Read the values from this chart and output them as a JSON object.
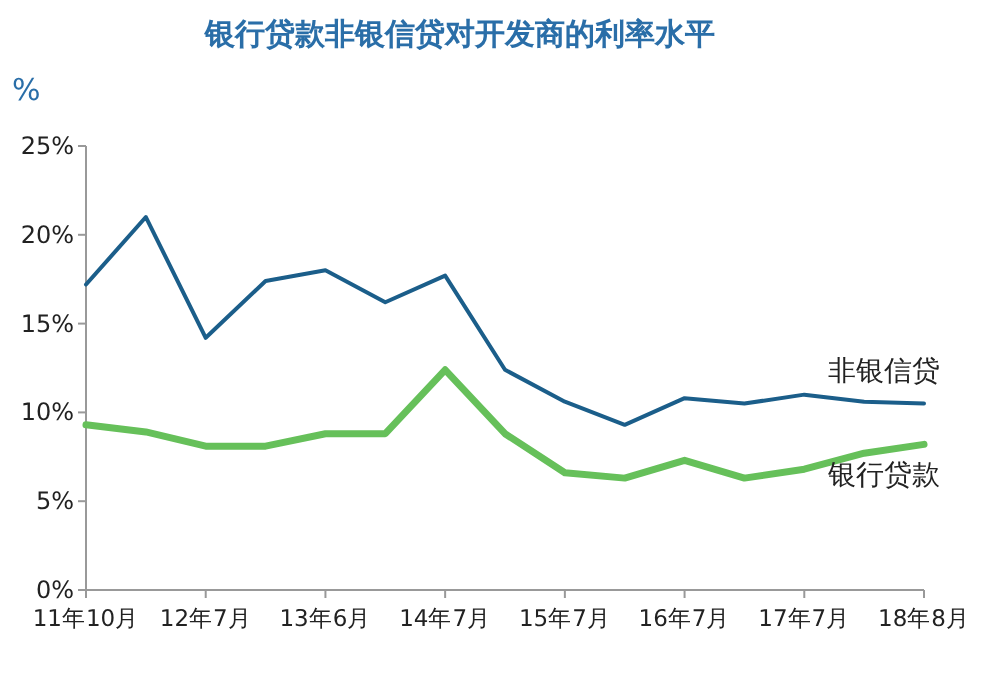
{
  "chart_data": {
    "type": "line",
    "title": "银行贷款非银信贷对开发商的利率水平",
    "ylabel": "%",
    "categories": [
      "11年10月",
      null,
      "12年7月",
      null,
      "13年6月",
      null,
      "14年7月",
      null,
      "15年7月",
      null,
      "16年7月",
      null,
      "17年7月",
      null,
      "18年8月"
    ],
    "series": [
      {
        "name": "非银信贷",
        "color": "#1b5e8a",
        "values": [
          17.2,
          21.0,
          14.2,
          17.4,
          18.0,
          16.2,
          17.7,
          12.4,
          10.6,
          9.3,
          10.8,
          10.5,
          11.0,
          10.6,
          10.5
        ]
      },
      {
        "name": "银行贷款",
        "color": "#66c05a",
        "values": [
          9.3,
          8.9,
          8.1,
          8.1,
          8.8,
          8.8,
          12.4,
          8.8,
          6.6,
          6.3,
          7.3,
          6.3,
          6.8,
          7.7,
          8.2
        ]
      }
    ],
    "ylim": [
      0,
      25
    ],
    "yticks": [
      {
        "value": 0,
        "label": "0%"
      },
      {
        "value": 5,
        "label": "5%"
      },
      {
        "value": 10,
        "label": "10%"
      },
      {
        "value": 15,
        "label": "15%"
      },
      {
        "value": 20,
        "label": "20%"
      },
      {
        "value": 25,
        "label": "25%"
      }
    ],
    "legend": false
  }
}
